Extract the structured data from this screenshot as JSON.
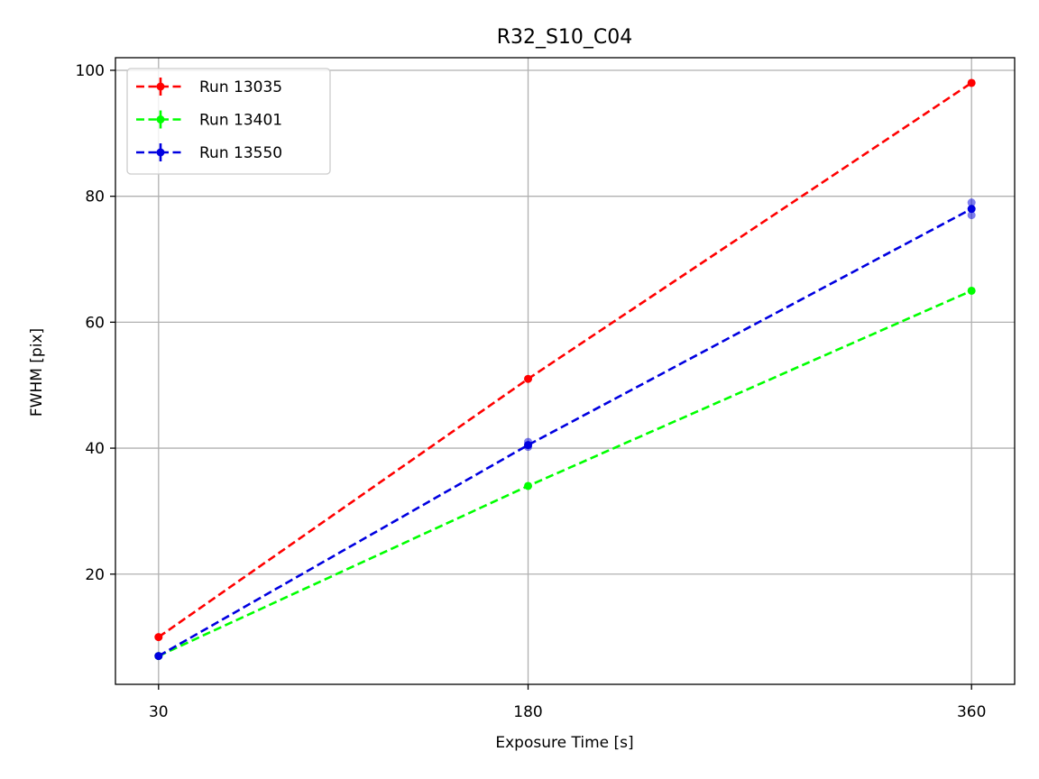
{
  "chart_data": {
    "type": "line",
    "title": "R32_S10_C04",
    "xlabel": "Exposure Time [s]",
    "ylabel": "FWHM [pix]",
    "x": [
      30,
      180,
      360
    ],
    "x_ticks": [
      "30",
      "180",
      "360"
    ],
    "y_ticks": [
      "20",
      "40",
      "60",
      "80",
      "100"
    ],
    "xlim": [
      12.5,
      377.5
    ],
    "ylim": [
      2.5,
      102
    ],
    "grid": true,
    "legend_position": "upper left",
    "series": [
      {
        "name": "Run 13035",
        "color": "#ff0000",
        "linestyle": "dashed",
        "values": [
          10,
          51,
          98
        ],
        "extra_points": []
      },
      {
        "name": "Run 13401",
        "color": "#00ff00",
        "linestyle": "dashed",
        "values": [
          7,
          34,
          65
        ],
        "extra_points": []
      },
      {
        "name": "Run 13550",
        "color": "#0000e0",
        "linestyle": "dashed",
        "values": [
          7,
          40.5,
          78
        ],
        "extra_points": [
          [
            180,
            41
          ],
          [
            180,
            40.2
          ],
          [
            360,
            79
          ],
          [
            360,
            77
          ]
        ]
      }
    ]
  }
}
